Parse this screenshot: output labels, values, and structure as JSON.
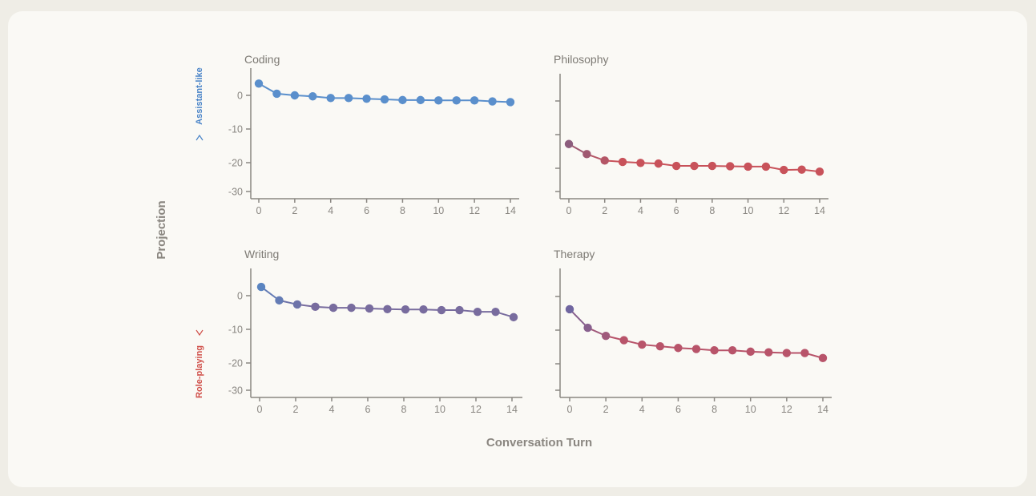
{
  "figure": {
    "ylabel": "Projection",
    "xlabel": "Conversation Turn",
    "up_label": "Assistant-like",
    "down_label": "Role-playing",
    "up_color": "#4a84c8",
    "down_color": "#d0504a"
  },
  "chart_data": [
    {
      "type": "line",
      "title": "Coding",
      "x": [
        0,
        1,
        2,
        3,
        4,
        5,
        6,
        7,
        8,
        9,
        10,
        11,
        12,
        13,
        14
      ],
      "values": [
        3.5,
        0.5,
        0,
        -0.3,
        -0.8,
        -0.8,
        -1.0,
        -1.2,
        -1.4,
        -1.4,
        -1.5,
        -1.5,
        -1.5,
        -1.8,
        -2.0
      ],
      "yticks": [
        0,
        -10,
        -20,
        -30
      ],
      "show_ytick_labels": true,
      "xticks": [
        0,
        2,
        4,
        6,
        8,
        10,
        12,
        14
      ],
      "ylim": [
        -32,
        8
      ],
      "xlim": [
        -0.4,
        14.6
      ],
      "color_start": "#5a8fcc",
      "color_end": "#5a8fcc"
    },
    {
      "type": "line",
      "title": "Philosophy",
      "x": [
        0,
        1,
        2,
        3,
        4,
        5,
        6,
        7,
        8,
        9,
        10,
        11,
        12,
        13,
        14
      ],
      "values": [
        -12.8,
        -15.8,
        -17.7,
        -18.1,
        -18.4,
        -18.6,
        -19.3,
        -19.3,
        -19.3,
        -19.4,
        -19.5,
        -19.5,
        -20.5,
        -20.4,
        -21.0
      ],
      "yticks": [
        0,
        -10,
        -20,
        -30
      ],
      "show_ytick_labels": false,
      "xticks": [
        0,
        2,
        4,
        6,
        8,
        10,
        12,
        14
      ],
      "ylim": [
        -32,
        8
      ],
      "xlim": [
        -0.4,
        14.6
      ],
      "color_start": "#8c5d7d",
      "color_end": "#c8525a"
    },
    {
      "type": "line",
      "title": "Writing",
      "x": [
        0,
        1,
        2,
        3,
        4,
        5,
        6,
        7,
        8,
        9,
        10,
        11,
        12,
        13,
        14
      ],
      "values": [
        2.6,
        -1.4,
        -2.6,
        -3.3,
        -3.6,
        -3.6,
        -3.8,
        -4.0,
        -4.1,
        -4.1,
        -4.3,
        -4.3,
        -4.8,
        -4.8,
        -6.4
      ],
      "yticks": [
        0,
        -10,
        -20,
        -30
      ],
      "show_ytick_labels": true,
      "xticks": [
        0,
        2,
        4,
        6,
        8,
        10,
        12,
        14
      ],
      "ylim": [
        -32,
        8
      ],
      "xlim": [
        -0.4,
        14.6
      ],
      "color_start": "#5a84c0",
      "color_end": "#786c9e"
    },
    {
      "type": "line",
      "title": "Therapy",
      "x": [
        0,
        1,
        2,
        3,
        4,
        5,
        6,
        7,
        8,
        9,
        10,
        11,
        12,
        13,
        14
      ],
      "values": [
        -3.8,
        -9.3,
        -11.7,
        -13.0,
        -14.3,
        -14.8,
        -15.3,
        -15.6,
        -16.0,
        -16.0,
        -16.4,
        -16.6,
        -16.8,
        -16.8,
        -18.3
      ],
      "yticks": [
        0,
        -10,
        -20,
        -30
      ],
      "show_ytick_labels": false,
      "xticks": [
        0,
        2,
        4,
        6,
        8,
        10,
        12,
        14
      ],
      "ylim": [
        -32,
        8
      ],
      "xlim": [
        -0.4,
        14.6
      ],
      "color_start": "#7066a0",
      "color_end": "#b8546a"
    }
  ]
}
